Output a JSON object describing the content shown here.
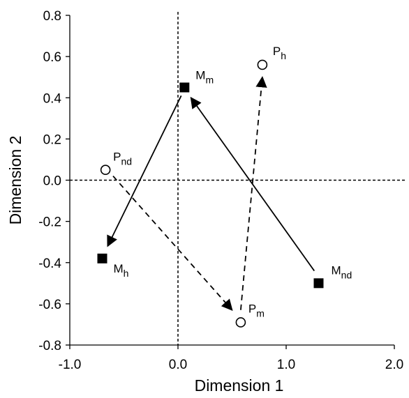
{
  "chart_data": {
    "type": "scatter",
    "xlabel": "Dimension 1",
    "ylabel": "Dimension 2",
    "xlim": [
      -1.0,
      2.0
    ],
    "ylim": [
      -0.8,
      0.8
    ],
    "x_ticks": [
      "-1.0",
      "0.0",
      "1.0",
      "2.0"
    ],
    "y_ticks": [
      "0.8",
      "0.6",
      "0.4",
      "0.2",
      "0.0",
      "-0.2",
      "-0.4",
      "-0.6",
      "-0.8"
    ],
    "x_tick_values": [
      -1.0,
      0.0,
      1.0,
      2.0
    ],
    "y_tick_values": [
      0.8,
      0.6,
      0.4,
      0.2,
      0.0,
      -0.2,
      -0.4,
      -0.6,
      -0.8
    ],
    "grid": false,
    "reference_lines": {
      "x": 0.0,
      "y": 0.0,
      "style": "dashed"
    },
    "series": [
      {
        "marker": "filled-square",
        "color": "#000000",
        "points": [
          {
            "label_main": "M",
            "label_sub": "m",
            "x": 0.06,
            "y": 0.45
          },
          {
            "label_main": "M",
            "label_sub": "h",
            "x": -0.7,
            "y": -0.38
          },
          {
            "label_main": "M",
            "label_sub": "nd",
            "x": 1.3,
            "y": -0.5
          }
        ]
      },
      {
        "marker": "open-circle",
        "color": "#000000",
        "points": [
          {
            "label_main": "P",
            "label_sub": "nd",
            "x": -0.67,
            "y": 0.05
          },
          {
            "label_main": "P",
            "label_sub": "m",
            "x": 0.58,
            "y": -0.69
          },
          {
            "label_main": "P",
            "label_sub": "h",
            "x": 0.78,
            "y": 0.56
          }
        ]
      }
    ],
    "arrows": [
      {
        "from": [
          1.26,
          -0.44
        ],
        "to": [
          0.12,
          0.4
        ],
        "style": "solid"
      },
      {
        "from": [
          0.03,
          0.41
        ],
        "to": [
          -0.65,
          -0.32
        ],
        "style": "solid"
      },
      {
        "from": [
          -0.6,
          0.02
        ],
        "to": [
          0.5,
          -0.63
        ],
        "style": "dashed"
      },
      {
        "from": [
          0.58,
          -0.63
        ],
        "to": [
          0.78,
          0.5
        ],
        "style": "dashed"
      }
    ]
  }
}
